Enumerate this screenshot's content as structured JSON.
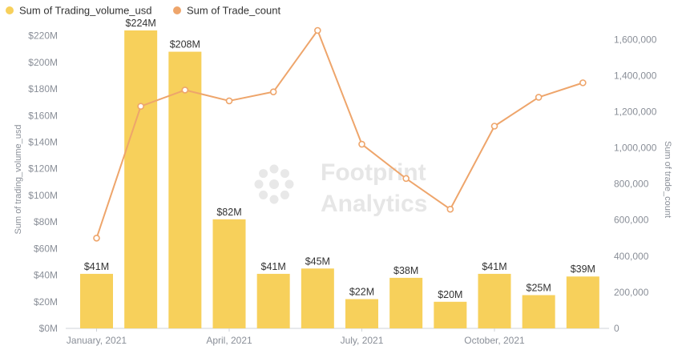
{
  "chart_data": {
    "type": "bar",
    "legend": [
      {
        "label": "Sum of Trading_volume_usd",
        "color": "#f7d05b"
      },
      {
        "label": "Sum of Trade_count",
        "color": "#eea56b"
      }
    ],
    "x_tick_labels": [
      "January, 2021",
      "April, 2021",
      "July, 2021",
      "October, 2021"
    ],
    "y_left": {
      "label": "Sum of trading_volume_usd",
      "ticks": [
        "$0M",
        "$20M",
        "$40M",
        "$60M",
        "$80M",
        "$100M",
        "$120M",
        "$140M",
        "$160M",
        "$180M",
        "$200M",
        "$220M"
      ],
      "ylim": [
        0,
        224
      ]
    },
    "y_right": {
      "label": "Sum of trade_count",
      "ticks": [
        "0",
        "200,000",
        "400,000",
        "600,000",
        "800,000",
        "1,000,000",
        "1,200,000",
        "1,400,000",
        "1,600,000"
      ],
      "ylim": [
        0,
        1650000
      ]
    },
    "bars": {
      "name": "Sum of Trading_volume_usd",
      "values": [
        41,
        224,
        208,
        82,
        41,
        45,
        22,
        38,
        20,
        41,
        25,
        39
      ],
      "labels": [
        "$41M",
        "$224M",
        "$208M",
        "$82M",
        "$41M",
        "$45M",
        "$22M",
        "$38M",
        "$20M",
        "$41M",
        "$25M",
        "$39M"
      ]
    },
    "line": {
      "name": "Sum of Trade_count",
      "values": [
        500000,
        1230000,
        1320000,
        1260000,
        1310000,
        1650000,
        1020000,
        830000,
        660000,
        1120000,
        1280000,
        1360000
      ]
    },
    "watermark": {
      "line1": "Footprint",
      "line2": "Analytics"
    },
    "colors": {
      "bar": "#f7d05b",
      "line": "#eea56b",
      "axis": "#cfd3d8",
      "text": "#8a8f98"
    }
  }
}
